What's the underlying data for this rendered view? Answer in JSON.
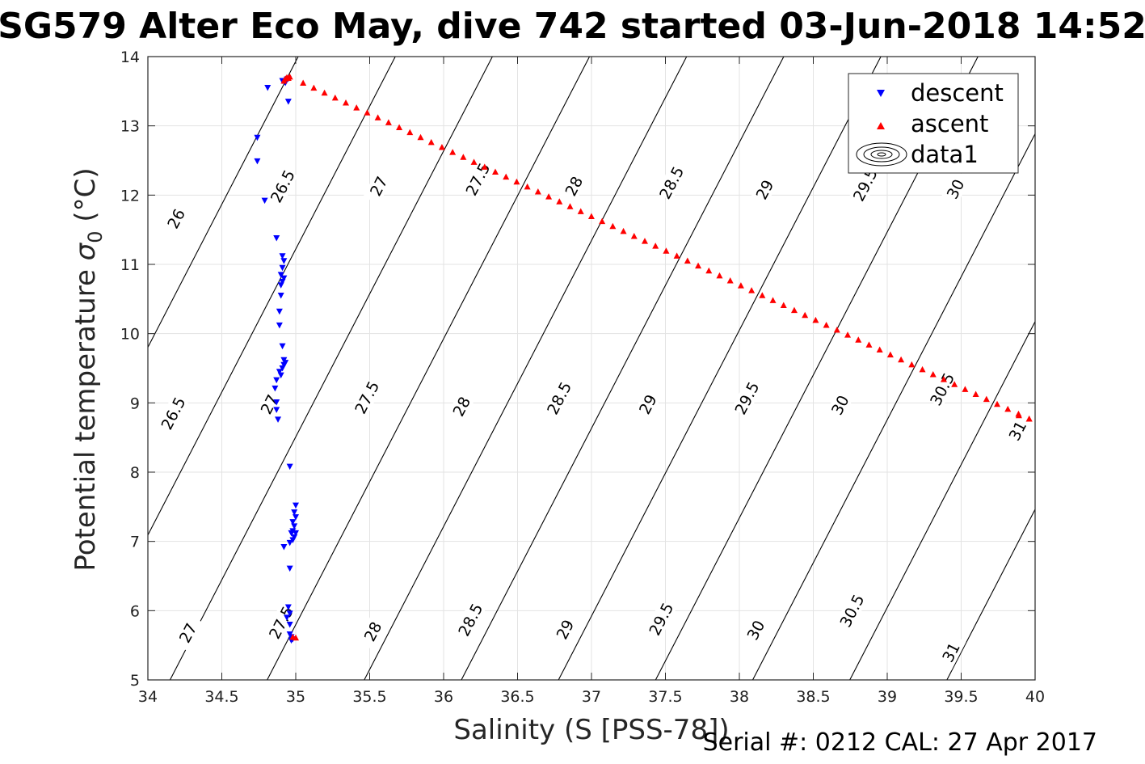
{
  "chart_data": {
    "type": "scatter",
    "title": "SG579 Alter Eco May, dive 742 started 03-Jun-2018 14:52",
    "xlabel": "Salinity (S [PSS-78])",
    "ylabel_main": "Potential temperature ",
    "ylabel_sigma": "σ",
    "ylabel_sub": "0",
    "ylabel_unit": " (°C)",
    "xlim": [
      34,
      40
    ],
    "ylim": [
      5,
      14
    ],
    "x_ticks": [
      "34",
      "34.5",
      "35",
      "35.5",
      "36",
      "36.5",
      "37",
      "37.5",
      "38",
      "38.5",
      "39",
      "39.5",
      "40"
    ],
    "y_ticks": [
      "5",
      "6",
      "7",
      "8",
      "9",
      "10",
      "11",
      "12",
      "13",
      "14"
    ],
    "grid": true,
    "legend_position": "top-right",
    "legend": [
      "descent",
      "ascent",
      "data1"
    ],
    "series": [
      {
        "name": "descent",
        "color": "#0000ff",
        "marker": "triangle-down",
        "points": [
          [
            34.91,
            13.65
          ],
          [
            34.93,
            13.62
          ],
          [
            34.95,
            13.68
          ],
          [
            34.94,
            13.67
          ],
          [
            34.81,
            13.55
          ],
          [
            34.95,
            13.35
          ],
          [
            34.74,
            12.83
          ],
          [
            34.74,
            12.49
          ],
          [
            34.79,
            11.92
          ],
          [
            34.87,
            11.38
          ],
          [
            34.91,
            11.12
          ],
          [
            34.92,
            11.05
          ],
          [
            34.91,
            10.95
          ],
          [
            34.9,
            10.85
          ],
          [
            34.92,
            10.8
          ],
          [
            34.91,
            10.75
          ],
          [
            34.9,
            10.7
          ],
          [
            34.9,
            10.55
          ],
          [
            34.89,
            10.32
          ],
          [
            34.89,
            10.12
          ],
          [
            34.91,
            9.82
          ],
          [
            34.92,
            9.62
          ],
          [
            34.93,
            9.58
          ],
          [
            34.92,
            9.55
          ],
          [
            34.91,
            9.5
          ],
          [
            34.89,
            9.45
          ],
          [
            34.9,
            9.4
          ],
          [
            34.87,
            9.33
          ],
          [
            34.86,
            9.21
          ],
          [
            34.87,
            9.01
          ],
          [
            34.87,
            8.9
          ],
          [
            34.88,
            8.76
          ],
          [
            34.96,
            8.08
          ],
          [
            35.0,
            7.52
          ],
          [
            34.99,
            7.42
          ],
          [
            35.0,
            7.35
          ],
          [
            34.98,
            7.28
          ],
          [
            34.99,
            7.22
          ],
          [
            34.98,
            7.15
          ],
          [
            34.97,
            7.12
          ],
          [
            35.0,
            7.12
          ],
          [
            34.99,
            7.06
          ],
          [
            34.98,
            7.02
          ],
          [
            34.96,
            6.98
          ],
          [
            34.92,
            6.92
          ],
          [
            34.96,
            6.61
          ],
          [
            34.95,
            6.05
          ],
          [
            34.96,
            5.96
          ],
          [
            34.94,
            5.9
          ],
          [
            34.96,
            5.8
          ],
          [
            34.96,
            5.66
          ],
          [
            34.97,
            5.62
          ],
          [
            34.98,
            5.59
          ],
          [
            34.97,
            5.57
          ]
        ]
      },
      {
        "name": "ascent",
        "color": "#ff0000",
        "marker": "triangle-up",
        "points": [
          [
            34.92,
            13.65
          ],
          [
            34.93,
            13.68
          ],
          [
            34.94,
            13.7
          ],
          [
            34.95,
            13.69
          ],
          [
            34.96,
            13.71
          ],
          [
            34.98,
            5.62
          ],
          [
            35.0,
            5.61
          ],
          [
            39.96,
            8.77
          ],
          [
            39.89,
            8.82
          ]
        ]
      },
      {
        "name": "data1",
        "color": "#000000",
        "marker": "contour",
        "points": []
      }
    ],
    "contour_levels": [
      "26",
      "26.5",
      "27",
      "27.5",
      "28",
      "28.5",
      "29",
      "29.5",
      "30",
      "30.5",
      "31"
    ],
    "contour_labels": [
      {
        "text": "26",
        "s": 34.19,
        "t": 11.66
      },
      {
        "text": "26.5",
        "s": 34.91,
        "t": 12.13
      },
      {
        "text": "27",
        "s": 35.56,
        "t": 12.13
      },
      {
        "text": "27.5",
        "s": 36.23,
        "t": 12.23
      },
      {
        "text": "28",
        "s": 36.88,
        "t": 12.13
      },
      {
        "text": "28.5",
        "s": 37.54,
        "t": 12.18
      },
      {
        "text": "29",
        "s": 38.17,
        "t": 12.08
      },
      {
        "text": "29.5",
        "s": 38.85,
        "t": 12.15
      },
      {
        "text": "30",
        "s": 39.46,
        "t": 12.09
      },
      {
        "text": "26.5",
        "s": 34.17,
        "t": 8.85
      },
      {
        "text": "27",
        "s": 34.82,
        "t": 8.98
      },
      {
        "text": "27.5",
        "s": 35.48,
        "t": 9.08
      },
      {
        "text": "28",
        "s": 36.12,
        "t": 8.95
      },
      {
        "text": "28.5",
        "s": 36.78,
        "t": 9.07
      },
      {
        "text": "29",
        "s": 37.38,
        "t": 8.98
      },
      {
        "text": "29.5",
        "s": 38.05,
        "t": 9.07
      },
      {
        "text": "30",
        "s": 38.68,
        "t": 8.97
      },
      {
        "text": "30.5",
        "s": 39.37,
        "t": 9.2
      },
      {
        "text": "31",
        "s": 39.88,
        "t": 8.6
      },
      {
        "text": "27",
        "s": 34.27,
        "t": 5.68
      },
      {
        "text": "27.5",
        "s": 34.9,
        "t": 5.83
      },
      {
        "text": "28",
        "s": 35.52,
        "t": 5.7
      },
      {
        "text": "28.5",
        "s": 36.18,
        "t": 5.87
      },
      {
        "text": "29",
        "s": 36.82,
        "t": 5.73
      },
      {
        "text": "29.5",
        "s": 37.47,
        "t": 5.88
      },
      {
        "text": "30",
        "s": 38.11,
        "t": 5.72
      },
      {
        "text": "30.5",
        "s": 38.76,
        "t": 6.0
      },
      {
        "text": "31",
        "s": 39.43,
        "t": 5.4
      }
    ]
  },
  "serial_text": "Serial #: 0212  CAL: 27 Apr 2017",
  "colors": {
    "grid": "#e3e3e3",
    "axis": "#262626",
    "contour": "#000000",
    "descent": "#0000ff",
    "ascent": "#ff0000"
  }
}
